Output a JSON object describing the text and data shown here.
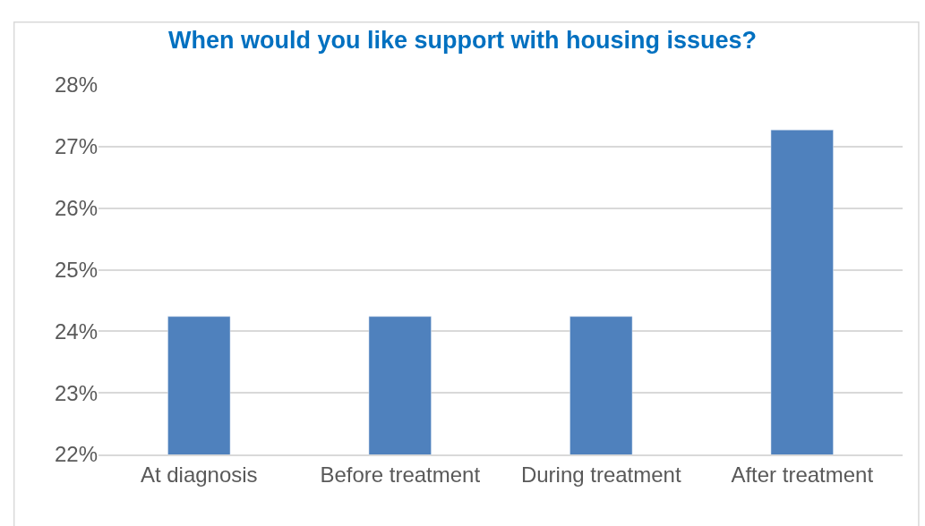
{
  "chart_data": {
    "type": "bar",
    "title": "When would you like support with housing issues?",
    "categories": [
      "At diagnosis",
      "Before treatment",
      "During treatment",
      "After treatment"
    ],
    "values": [
      24.24,
      24.24,
      24.24,
      27.27
    ],
    "color": "#4f81bd",
    "ylim": [
      22,
      28
    ],
    "yticks": [
      {
        "value": 22,
        "label": "22%"
      },
      {
        "value": 23,
        "label": "23%"
      },
      {
        "value": 24,
        "label": "24%"
      },
      {
        "value": 25,
        "label": "25%"
      },
      {
        "value": 26,
        "label": "26%"
      },
      {
        "value": 27,
        "label": "27%"
      },
      {
        "value": 28,
        "label": "28%"
      }
    ],
    "grid": "y",
    "legend": false
  }
}
